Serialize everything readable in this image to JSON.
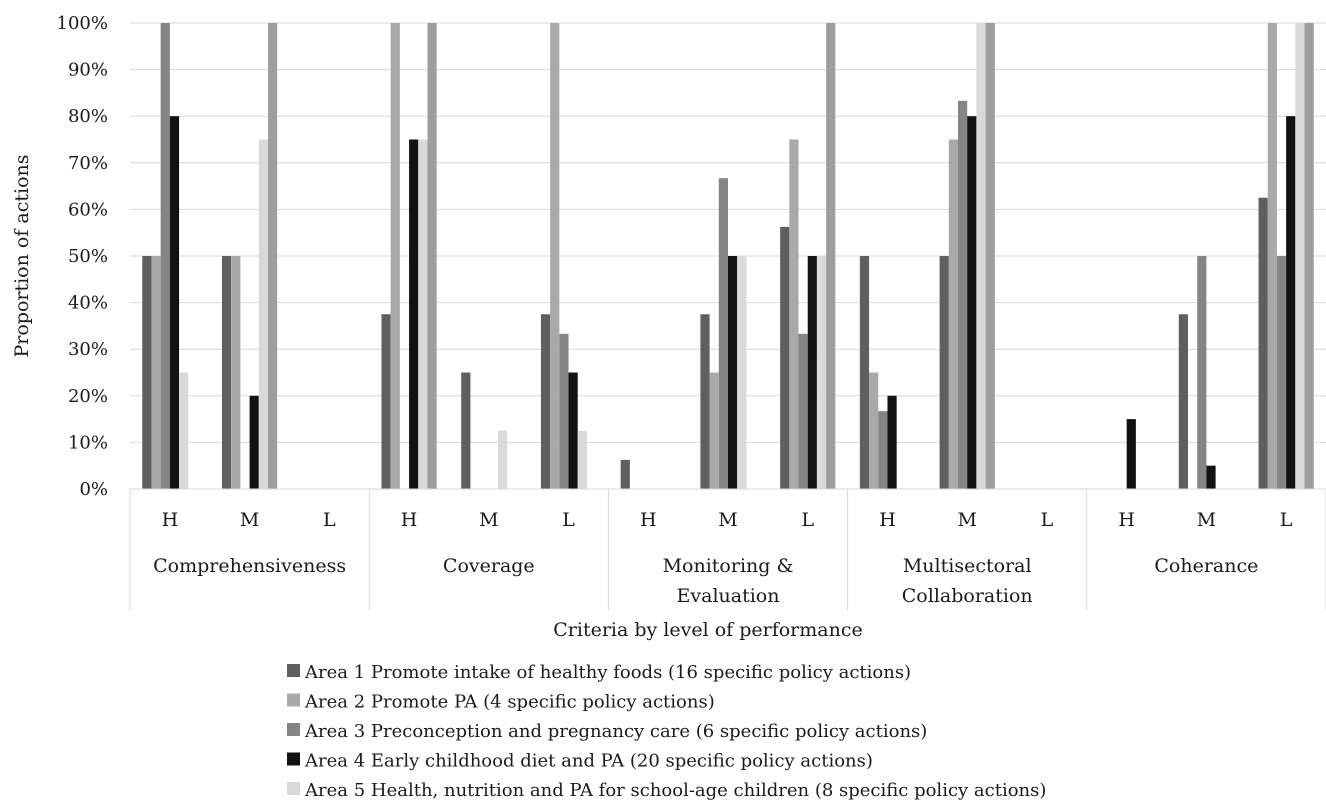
{
  "chart_data": {
    "type": "bar",
    "ylabel": "Proportion of actions",
    "xlabel": "Criteria by level of  performance",
    "ylim": [
      0,
      100
    ],
    "y_ticks": [
      "0%",
      "10%",
      "20%",
      "30%",
      "40%",
      "50%",
      "60%",
      "70%",
      "80%",
      "90%",
      "100%"
    ],
    "grid": "horizontal",
    "legend_position": "bottom",
    "groups": [
      {
        "label_lines": [
          "Comprehensiveness"
        ],
        "levels": [
          "H",
          "M",
          "L"
        ]
      },
      {
        "label_lines": [
          "Coverage"
        ],
        "levels": [
          "H",
          "M",
          "L"
        ]
      },
      {
        "label_lines": [
          "Monitoring &",
          "Evaluation"
        ],
        "levels": [
          "H",
          "M",
          "L"
        ]
      },
      {
        "label_lines": [
          "Multisectoral",
          "Collaboration"
        ],
        "levels": [
          "H",
          "M",
          "L"
        ]
      },
      {
        "label_lines": [
          "Coherance"
        ],
        "levels": [
          "H",
          "M",
          "L"
        ]
      }
    ],
    "series": [
      {
        "name": "Area 1 Promote intake of healthy foods (16 specific policy actions)",
        "color": "#5f5f5f",
        "values": [
          50,
          50,
          0,
          37.5,
          25,
          37.5,
          6.25,
          37.5,
          56.25,
          50,
          50,
          0,
          0,
          37.5,
          62.5
        ]
      },
      {
        "name": "Area 2 Promote PA (4 specific policy actions)",
        "color": "#a9a9a9",
        "values": [
          50,
          50,
          0,
          100,
          0,
          100,
          0,
          25,
          75,
          25,
          75,
          0,
          0,
          0,
          100
        ]
      },
      {
        "name": "Area 3 Preconception and pregnancy care (6 specific policy actions)",
        "color": "#858585",
        "values": [
          100,
          0,
          0,
          0,
          0,
          33.3,
          0,
          66.7,
          33.3,
          16.7,
          83.3,
          0,
          0,
          50,
          50
        ]
      },
      {
        "name": "Area 4 Early childhood diet and PA (20 specific policy actions)",
        "color": "#121212",
        "values": [
          80,
          20,
          0,
          75,
          0,
          25,
          0,
          50,
          50,
          20,
          80,
          0,
          15,
          5,
          80
        ]
      },
      {
        "name": "Area 5 Health, nutrition and PA for school-age children (8 specific policy actions)",
        "color": "#d9d9d9",
        "values": [
          25,
          75,
          0,
          75,
          12.5,
          12.5,
          0,
          50,
          50,
          0,
          100,
          0,
          0,
          0,
          100
        ]
      },
      {
        "name": "",
        "color": "#9e9e9e",
        "values": [
          0,
          100,
          0,
          100,
          0,
          0,
          0,
          0,
          100,
          0,
          100,
          0,
          0,
          0,
          100
        ]
      }
    ]
  }
}
